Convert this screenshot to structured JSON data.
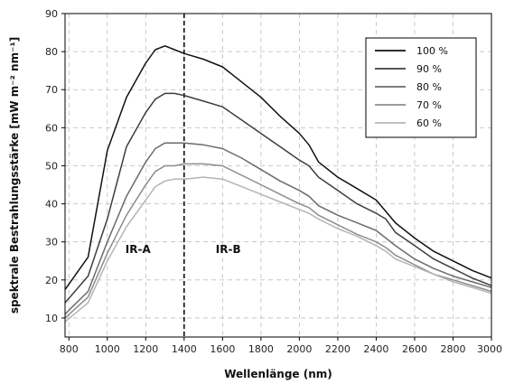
{
  "chart_data": {
    "type": "line",
    "title": "",
    "xlabel": "Wellenlänge (nm)",
    "ylabel": "spektrale Bestrahlungsstärke [mW m⁻² nm⁻¹]",
    "xlim": [
      780,
      3000
    ],
    "ylim": [
      5,
      90
    ],
    "xticks": [
      800,
      1000,
      1200,
      1400,
      1600,
      1800,
      2000,
      2200,
      2400,
      2600,
      2800,
      3000
    ],
    "yticks": [
      10,
      20,
      30,
      40,
      50,
      60,
      70,
      80,
      90
    ],
    "grid": true,
    "legend_position": "top-right",
    "divider": {
      "x": 1400,
      "left_label": "IR-A",
      "right_label": "IR-B"
    },
    "series": [
      {
        "name": "100 %",
        "color": "#111111",
        "x": [
          780,
          900,
          1000,
          1100,
          1200,
          1250,
          1300,
          1350,
          1400,
          1500,
          1600,
          1700,
          1800,
          1900,
          2000,
          2050,
          2100,
          2200,
          2300,
          2400,
          2450,
          2500,
          2600,
          2700,
          2800,
          2900,
          3000
        ],
        "y": [
          17.5,
          26,
          54,
          68,
          77,
          80.5,
          81.5,
          80.5,
          79.5,
          78,
          76,
          72,
          68,
          63,
          58.5,
          55.5,
          51,
          47,
          44,
          41,
          38,
          35,
          31,
          27.5,
          25,
          22.5,
          20.5
        ]
      },
      {
        "name": "90 %",
        "color": "#3e3e3e",
        "x": [
          780,
          900,
          1000,
          1100,
          1200,
          1250,
          1300,
          1350,
          1400,
          1500,
          1600,
          1700,
          1800,
          1900,
          2000,
          2050,
          2100,
          2200,
          2300,
          2400,
          2450,
          2500,
          2600,
          2700,
          2800,
          2900,
          3000
        ],
        "y": [
          14,
          21,
          36,
          55,
          64,
          67.5,
          69,
          69,
          68.5,
          67,
          65.5,
          62,
          58.5,
          55,
          51.5,
          50,
          47,
          43.5,
          40,
          37.5,
          36,
          32.5,
          29,
          25.5,
          23,
          20.5,
          18.5
        ]
      },
      {
        "name": "80 %",
        "color": "#6b6b6b",
        "x": [
          780,
          900,
          1000,
          1100,
          1200,
          1250,
          1300,
          1350,
          1400,
          1500,
          1600,
          1700,
          1800,
          1900,
          2000,
          2050,
          2100,
          2200,
          2300,
          2400,
          2450,
          2500,
          2600,
          2700,
          2800,
          2900,
          3000
        ],
        "y": [
          11,
          17,
          30,
          42,
          51,
          54.5,
          56,
          56,
          56,
          55.5,
          54.5,
          52,
          49,
          46,
          43.5,
          42,
          39.5,
          37,
          35,
          33,
          31,
          29,
          25.5,
          23,
          21,
          19.5,
          18
        ]
      },
      {
        "name": "70 %",
        "color": "#8c8c8c",
        "x": [
          780,
          900,
          1000,
          1100,
          1200,
          1250,
          1300,
          1350,
          1400,
          1500,
          1600,
          1700,
          1800,
          1900,
          2000,
          2050,
          2100,
          2200,
          2300,
          2400,
          2450,
          2500,
          2600,
          2700,
          2800,
          2900,
          3000
        ],
        "y": [
          10,
          15.5,
          27,
          37,
          45,
          48.5,
          50,
          50,
          50.5,
          50.5,
          50,
          47.5,
          45,
          42.5,
          40,
          39,
          37,
          34.5,
          32,
          30,
          28.5,
          26.5,
          24,
          21.5,
          20,
          18.5,
          17
        ]
      },
      {
        "name": "60 %",
        "color": "#b4b4b4",
        "x": [
          780,
          900,
          1000,
          1100,
          1200,
          1250,
          1300,
          1350,
          1400,
          1500,
          1600,
          1700,
          1800,
          1900,
          2000,
          2050,
          2100,
          2200,
          2300,
          2400,
          2450,
          2500,
          2600,
          2700,
          2800,
          2900,
          3000
        ],
        "y": [
          9,
          14,
          25,
          34,
          41,
          44.5,
          46,
          46.5,
          46.5,
          47,
          46.5,
          44.5,
          42.5,
          40.5,
          38.5,
          37.5,
          36,
          33.5,
          31.5,
          29,
          27.5,
          25.5,
          23.5,
          21.5,
          19.5,
          18,
          16.5
        ]
      }
    ]
  }
}
